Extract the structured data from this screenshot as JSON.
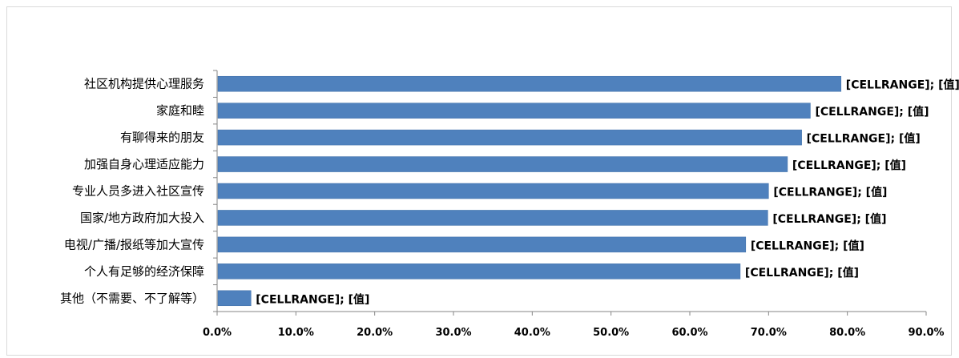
{
  "chart_data": {
    "type": "bar",
    "orientation": "horizontal",
    "title": "",
    "xlabel": "",
    "ylabel": "",
    "xlim": [
      0,
      90
    ],
    "x_ticks": [
      "0.0%",
      "10.0%",
      "20.0%",
      "30.0%",
      "40.0%",
      "50.0%",
      "60.0%",
      "70.0%",
      "80.0%",
      "90.0%"
    ],
    "grid": false,
    "legend": "none",
    "bar_color": "#4F81BD",
    "categories": [
      "社区机构提供心理服务",
      "家庭和睦",
      "有聊得来的朋友",
      "加强自身心理适应能力",
      "专业人员多进入社区宣传",
      "国家/地方政府加大投入",
      "电视/广播/报纸等加大宣传",
      "个人有足够的经济保障",
      "其他（不需要、不了解等）"
    ],
    "values": [
      79.2,
      75.3,
      74.2,
      72.4,
      70.0,
      69.9,
      67.1,
      66.4,
      4.3
    ],
    "data_labels": [
      "[CELLRANGE]; [值]",
      "[CELLRANGE]; [值]",
      "[CELLRANGE]; [值]",
      "[CELLRANGE]; [值]",
      "[CELLRANGE]; [值]",
      "[CELLRANGE]; [值]",
      "[CELLRANGE]; [值]",
      "[CELLRANGE]; [值]",
      "[CELLRANGE]; [值]"
    ]
  }
}
